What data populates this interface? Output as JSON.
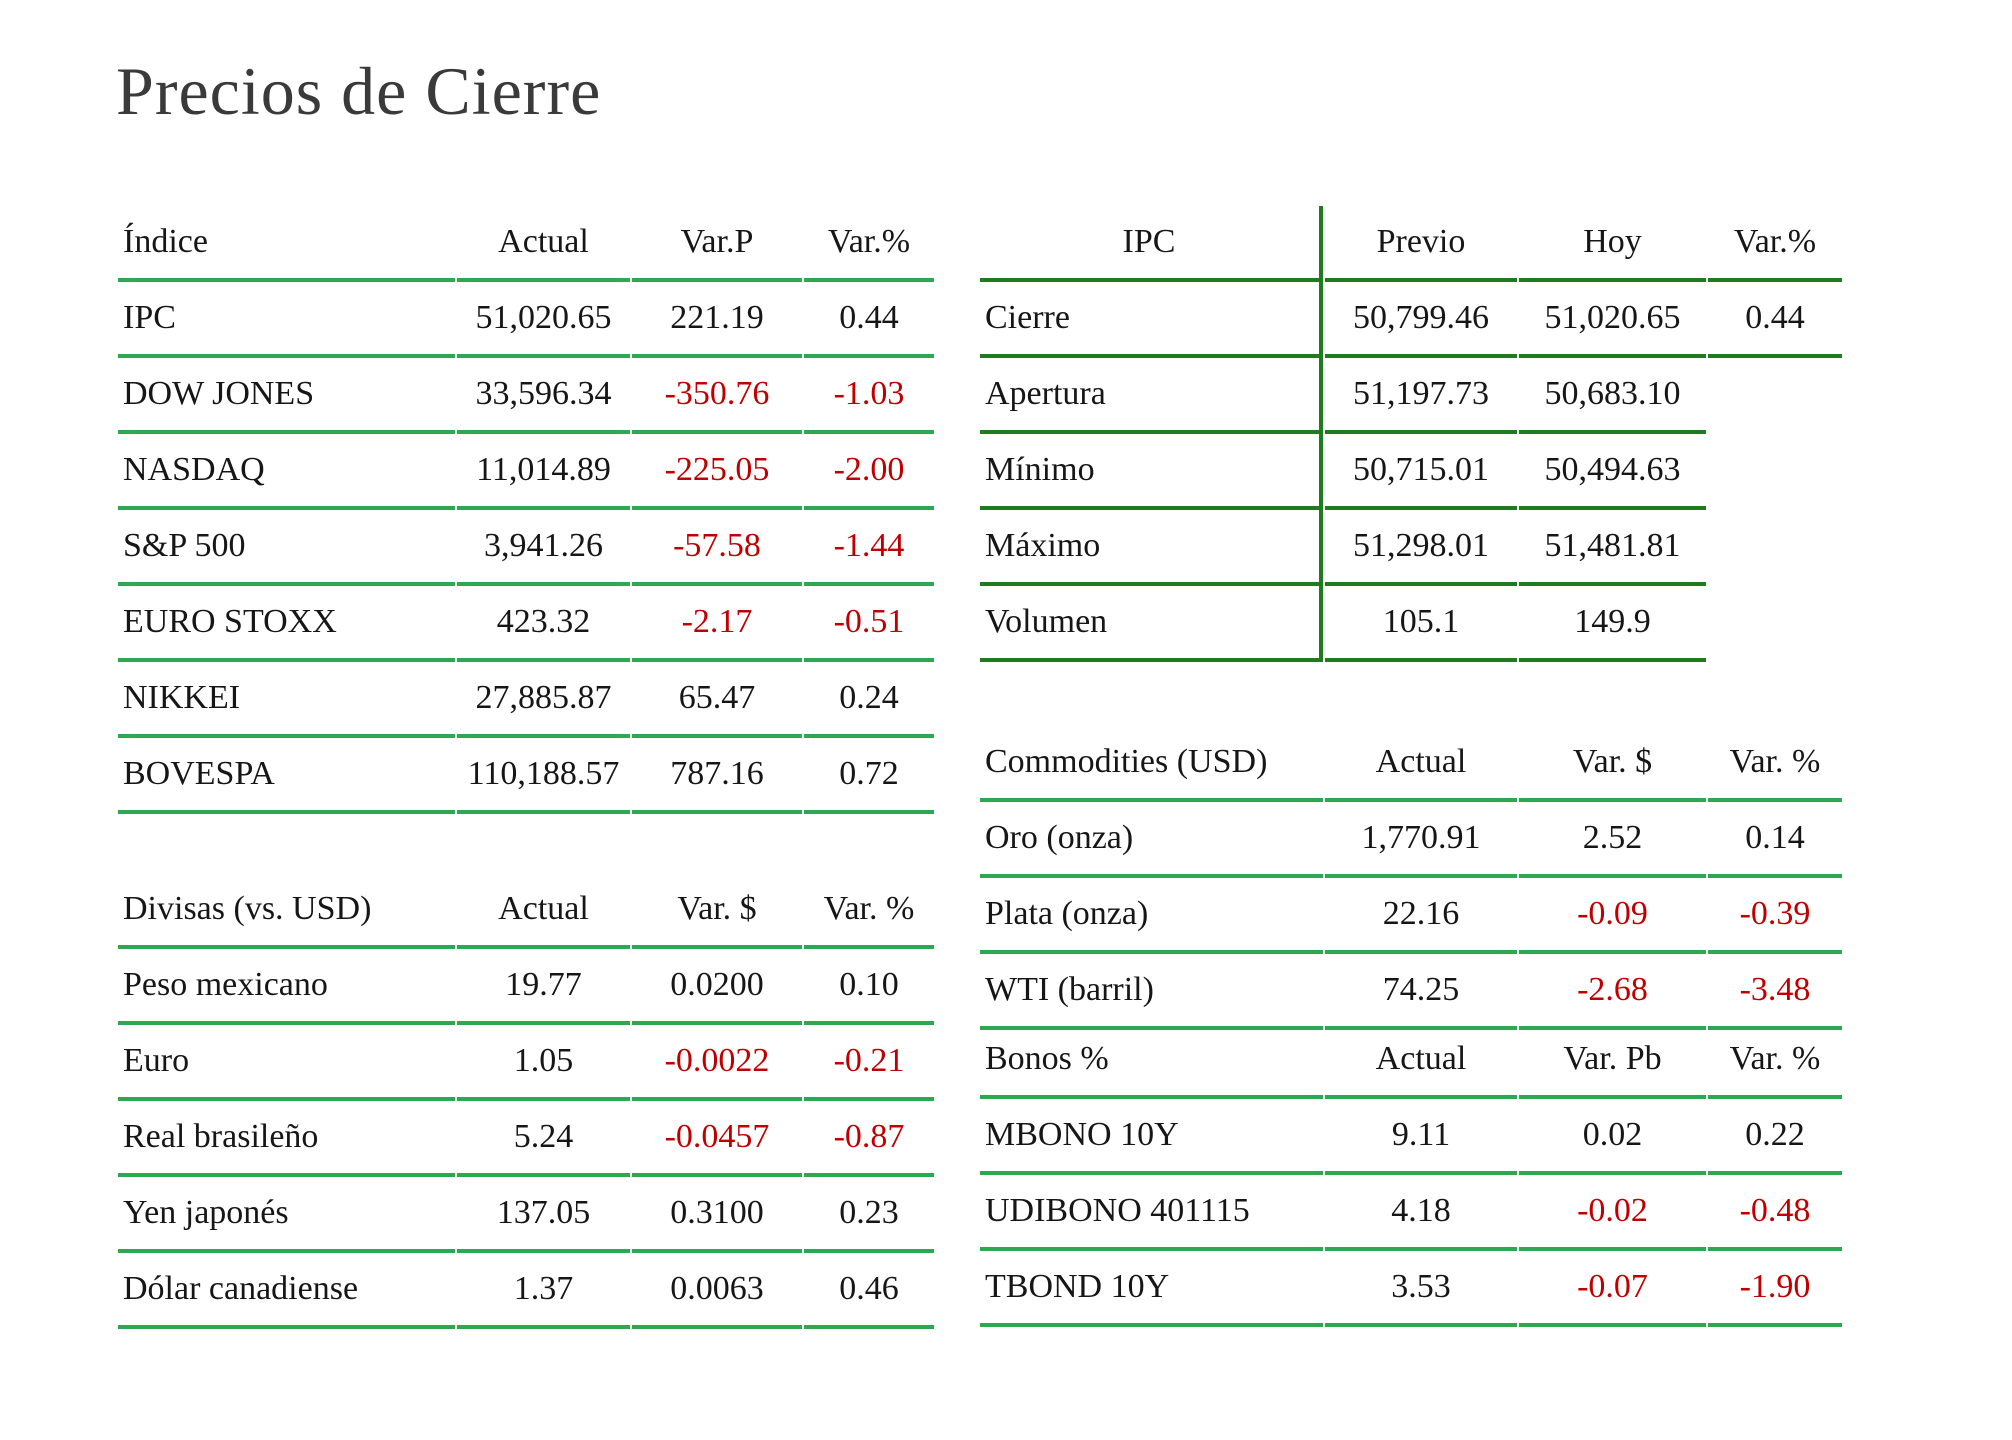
{
  "page": {
    "title": "Precios de Cierre"
  },
  "colors": {
    "line_green": "#2aa951",
    "line_green_dark": "#1e7c1e",
    "negative": "#c00000",
    "text": "#161616",
    "title": "#3a3a3a"
  },
  "tables": {
    "indices": {
      "columns": [
        "Índice",
        "Actual",
        "Var.P",
        "Var.%"
      ],
      "rows": [
        [
          "IPC",
          "51,020.65",
          "221.19",
          "0.44"
        ],
        [
          "DOW JONES",
          "33,596.34",
          "-350.76",
          "-1.03"
        ],
        [
          "NASDAQ",
          "11,014.89",
          "-225.05",
          "-2.00"
        ],
        [
          "S&P 500",
          "3,941.26",
          "-57.58",
          "-1.44"
        ],
        [
          "EURO STOXX",
          "423.32",
          "-2.17",
          "-0.51"
        ],
        [
          "NIKKEI",
          "27,885.87",
          "65.47",
          "0.24"
        ],
        [
          "BOVESPA",
          "110,188.57",
          "787.16",
          "0.72"
        ]
      ]
    },
    "ipc": {
      "columns": [
        "IPC",
        "Previo",
        "Hoy",
        "Var.%"
      ],
      "rows": [
        [
          "Cierre",
          "50,799.46",
          "51,020.65",
          "0.44"
        ],
        [
          "Apertura",
          "51,197.73",
          "50,683.10",
          ""
        ],
        [
          "Mínimo",
          "50,715.01",
          "50,494.63",
          ""
        ],
        [
          "Máximo",
          "51,298.01",
          "51,481.81",
          ""
        ],
        [
          "Volumen",
          "105.1",
          "149.9",
          ""
        ]
      ]
    },
    "divisas": {
      "columns": [
        "Divisas (vs. USD)",
        "Actual",
        "Var. $",
        "Var. %"
      ],
      "rows": [
        [
          "Peso mexicano",
          "19.77",
          "0.0200",
          "0.10"
        ],
        [
          "Euro",
          "1.05",
          "-0.0022",
          "-0.21"
        ],
        [
          "Real brasileño",
          "5.24",
          "-0.0457",
          "-0.87"
        ],
        [
          "Yen japonés",
          "137.05",
          "0.3100",
          "0.23"
        ],
        [
          "Dólar canadiense",
          "1.37",
          "0.0063",
          "0.46"
        ]
      ]
    },
    "commodities": {
      "columns": [
        "Commodities (USD)",
        "Actual",
        "Var. $",
        "Var. %"
      ],
      "rows": [
        [
          "Oro (onza)",
          "1,770.91",
          "2.52",
          "0.14"
        ],
        [
          "Plata (onza)",
          "22.16",
          "-0.09",
          "-0.39"
        ],
        [
          "WTI (barril)",
          "74.25",
          "-2.68",
          "-3.48"
        ]
      ]
    },
    "bonos": {
      "columns": [
        "Bonos %",
        "Actual",
        "Var. Pb",
        "Var. %"
      ],
      "rows": [
        [
          "MBONO 10Y",
          "9.11",
          "0.02",
          "0.22"
        ],
        [
          "UDIBONO 401115",
          "4.18",
          "-0.02",
          "-0.48"
        ],
        [
          "TBOND 10Y",
          "3.53",
          "-0.07",
          "-1.90"
        ]
      ]
    }
  }
}
